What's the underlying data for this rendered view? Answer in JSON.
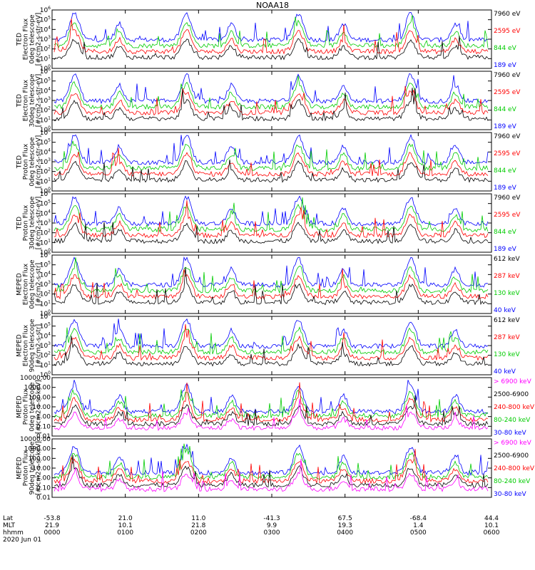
{
  "title": "NOAA18",
  "colors": {
    "blue": "#0000ff",
    "red": "#ff0000",
    "green": "#00cc00",
    "black": "#000000",
    "magenta": "#ff00ff"
  },
  "chart_data": {
    "type": "line",
    "x_axis": {
      "hours": [
        0,
        1,
        2,
        3,
        4,
        5,
        6
      ],
      "row_labels": [
        "Lat",
        "MLT",
        "hhmm",
        "2020 Jun 01"
      ],
      "lat": [
        "-53.8",
        "21.0",
        "11.0",
        "-41.3",
        "67.5",
        "-68.4",
        "44.4"
      ],
      "mlt": [
        "21.9",
        "10.1",
        "21.8",
        "9.9",
        "19.3",
        "1.4",
        "10.1"
      ],
      "hhmm": [
        "0000",
        "0100",
        "0200",
        "0300",
        "0400",
        "0500",
        "0600"
      ]
    },
    "panels": [
      {
        "ylabel": [
          "TED",
          "Electron Flux",
          "0deg telescope",
          "[#/cm2-s-str-eV]"
        ],
        "yticks": [
          "10^6",
          "10^5",
          "10^4",
          "10^3",
          "10^2",
          "10^1",
          "10^0"
        ],
        "legend": [
          {
            "text": "7960 eV",
            "color": "black"
          },
          {
            "text": "2595 eV",
            "color": "red"
          },
          {
            "text": "844 eV",
            "color": "green"
          },
          {
            "text": "189 eV",
            "color": "blue"
          }
        ]
      },
      {
        "ylabel": [
          "TED",
          "Electron Flux",
          "30deg telescope",
          "[#/cm2-s-str-eV]"
        ],
        "yticks": [
          "10^6",
          "10^5",
          "10^4",
          "10^3",
          "10^2",
          "10^1",
          "10^0"
        ],
        "legend": [
          {
            "text": "7960 eV",
            "color": "black"
          },
          {
            "text": "2595 eV",
            "color": "red"
          },
          {
            "text": "844 eV",
            "color": "green"
          },
          {
            "text": "189 eV",
            "color": "blue"
          }
        ]
      },
      {
        "ylabel": [
          "TED",
          "Proton Flux",
          "0deg telescope",
          "[#/cm2-s-str-eV]"
        ],
        "yticks": [
          "10^6",
          "10^5",
          "10^4",
          "10^3",
          "10^2",
          "10^1",
          "10^0"
        ],
        "legend": [
          {
            "text": "7960 eV",
            "color": "black"
          },
          {
            "text": "2595 eV",
            "color": "red"
          },
          {
            "text": "844 eV",
            "color": "green"
          },
          {
            "text": "189 eV",
            "color": "blue"
          }
        ]
      },
      {
        "ylabel": [
          "TED",
          "Proton Flux",
          "30deg telescope",
          "[#/cm2-s-str-eV]"
        ],
        "yticks": [
          "10^6",
          "10^5",
          "10^4",
          "10^3",
          "10^2",
          "10^1",
          "10^0"
        ],
        "legend": [
          {
            "text": "7960 eV",
            "color": "black"
          },
          {
            "text": "2595 eV",
            "color": "red"
          },
          {
            "text": "844 eV",
            "color": "green"
          },
          {
            "text": "189 eV",
            "color": "blue"
          }
        ]
      },
      {
        "ylabel": [
          "MEPED",
          "Electron Flux",
          "0deg telescope",
          "[#/cm2-s-str]"
        ],
        "yticks": [
          "10^6",
          "10^5",
          "10^4",
          "10^3",
          "10^2",
          "10^1",
          "10^0"
        ],
        "legend": [
          {
            "text": "612 keV",
            "color": "black"
          },
          {
            "text": "287 keV",
            "color": "red"
          },
          {
            "text": "130 keV",
            "color": "green"
          },
          {
            "text": "40 keV",
            "color": "blue"
          }
        ]
      },
      {
        "ylabel": [
          "MEPED",
          "Electron Flux",
          "90deg telescope",
          "[#/cm2-s-str]"
        ],
        "yticks": [
          "10^6",
          "10^5",
          "10^4",
          "10^3",
          "10^2",
          "10^1",
          "10^0"
        ],
        "legend": [
          {
            "text": "612 keV",
            "color": "black"
          },
          {
            "text": "287 keV",
            "color": "red"
          },
          {
            "text": "130 keV",
            "color": "green"
          },
          {
            "text": "40 keV",
            "color": "blue"
          }
        ]
      },
      {
        "ylabel": [
          "MEPED",
          "Proton Flux",
          "0deg telescope",
          "[#/cm2-s-sr-keV]"
        ],
        "yticks": [
          "10000.00",
          "1000.00",
          "100.00",
          "10.00",
          "1.00",
          "0.10",
          "0.01"
        ],
        "legend": [
          {
            "text": "> 6900 keV",
            "color": "magenta"
          },
          {
            "text": "2500-6900",
            "color": "black"
          },
          {
            "text": "240-800 keV",
            "color": "red"
          },
          {
            "text": "80-240 keV",
            "color": "green"
          },
          {
            "text": "30-80 keV",
            "color": "blue"
          }
        ]
      },
      {
        "ylabel": [
          "MEPED",
          "Proton Flux",
          "90deg telescope",
          "[#/cm2-s-sr-keV]"
        ],
        "yticks": [
          "10000.00",
          "1000.00",
          "100.00",
          "10.00",
          "1.00",
          "0.10",
          "0.01"
        ],
        "legend": [
          {
            "text": "> 6900 keV",
            "color": "magenta"
          },
          {
            "text": "2500-6900",
            "color": "black"
          },
          {
            "text": "240-800 keV",
            "color": "red"
          },
          {
            "text": "80-240 keV",
            "color": "green"
          },
          {
            "text": "30-80 keV",
            "color": "blue"
          }
        ]
      }
    ]
  }
}
